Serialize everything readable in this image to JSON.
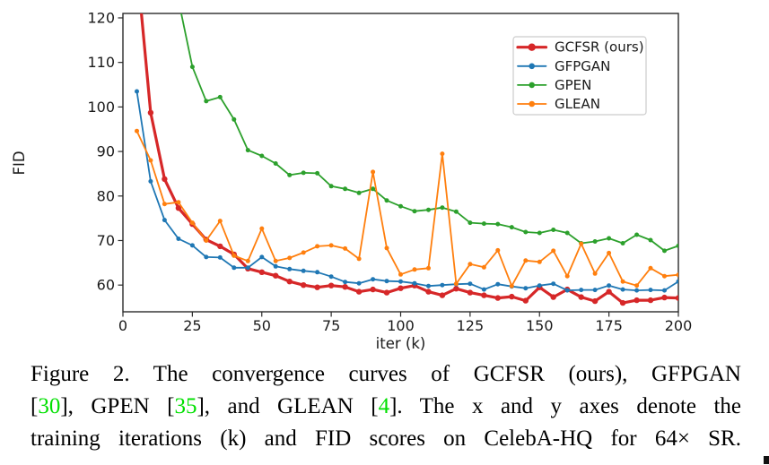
{
  "figure": {
    "caption": {
      "text_color": "#000000",
      "citation_color": "#00e000",
      "lines": [
        [
          {
            "text": "Figure 2.  The convergence curves of GCFSR (ours), GFPGAN"
          }
        ],
        [
          {
            "text": "["
          },
          {
            "text": "30",
            "green": true
          },
          {
            "text": "], GPEN ["
          },
          {
            "text": "35",
            "green": true
          },
          {
            "text": "], and GLEAN ["
          },
          {
            "text": "4",
            "green": true
          },
          {
            "text": "].  The x and y axes denote the"
          }
        ],
        [
          {
            "text": "training iterations (k) and FID scores on CelebA-HQ for 64× SR."
          }
        ]
      ]
    }
  },
  "chart_data": {
    "type": "line",
    "title": "",
    "xlabel": "iter (k)",
    "ylabel": "FID",
    "xlim": [
      0,
      200
    ],
    "ylim": [
      54,
      121
    ],
    "xticks": [
      0,
      25,
      50,
      75,
      100,
      125,
      150,
      175,
      200
    ],
    "yticks": [
      60,
      70,
      80,
      90,
      100,
      110,
      120
    ],
    "grid": false,
    "legend_position": "upper right",
    "frame_color": "#2a2a2a",
    "text_color": "#1a1a1a",
    "legend_edge_color": "#cccccc",
    "series": [
      {
        "id": "gcfsr-ours",
        "name": "GCFSR (ours)",
        "color": "#d62728",
        "line_width": 3.2,
        "marker_radius": 3.2,
        "legend_marker_radius": 4.2,
        "x": [
          5,
          10,
          15,
          20,
          25,
          30,
          35,
          40,
          45,
          50,
          55,
          60,
          65,
          70,
          75,
          80,
          85,
          90,
          95,
          100,
          105,
          110,
          115,
          120,
          125,
          130,
          135,
          140,
          145,
          150,
          155,
          160,
          165,
          170,
          175,
          180,
          185,
          190,
          195,
          200
        ],
        "values": [
          132,
          98.7,
          83.8,
          77.3,
          73.7,
          70.2,
          68.7,
          66.9,
          63.7,
          62.9,
          62.1,
          60.8,
          60.0,
          59.5,
          59.9,
          59.6,
          58.5,
          59.0,
          58.3,
          59.3,
          59.9,
          58.5,
          57.7,
          59.2,
          58.3,
          57.7,
          57.1,
          57.4,
          56.5,
          59.5,
          57.3,
          59.0,
          57.3,
          56.4,
          58.5,
          56.0,
          56.6,
          56.6,
          57.2,
          57.1
        ]
      },
      {
        "id": "gfpgan",
        "name": "GFPGAN",
        "color": "#1f77b4",
        "line_width": 1.8,
        "marker_radius": 2.5,
        "legend_marker_radius": 3.3,
        "x": [
          5,
          10,
          15,
          20,
          25,
          30,
          35,
          40,
          45,
          50,
          55,
          60,
          65,
          70,
          75,
          80,
          85,
          90,
          95,
          100,
          105,
          110,
          115,
          120,
          125,
          130,
          135,
          140,
          145,
          150,
          155,
          160,
          165,
          170,
          175,
          180,
          185,
          190,
          195,
          200
        ],
        "values": [
          103.5,
          83.3,
          74.6,
          70.4,
          68.9,
          66.3,
          66.2,
          63.9,
          63.9,
          66.3,
          64.2,
          63.6,
          63.2,
          62.9,
          61.9,
          60.7,
          60.4,
          61.3,
          60.9,
          60.8,
          60.4,
          59.8,
          60.0,
          60.2,
          60.3,
          59.0,
          60.2,
          59.7,
          59.3,
          59.9,
          60.3,
          58.8,
          58.9,
          58.9,
          59.9,
          59.0,
          58.8,
          58.9,
          58.8,
          60.8
        ]
      },
      {
        "id": "gpen",
        "name": "GPEN",
        "color": "#2ca02c",
        "line_width": 1.8,
        "marker_radius": 2.5,
        "legend_marker_radius": 3.3,
        "x": [
          20,
          25,
          30,
          35,
          40,
          45,
          50,
          55,
          60,
          65,
          70,
          75,
          80,
          85,
          90,
          95,
          100,
          105,
          110,
          115,
          120,
          125,
          130,
          135,
          140,
          145,
          150,
          155,
          160,
          165,
          170,
          175,
          180,
          185,
          190,
          195,
          200
        ],
        "values": [
          124,
          109,
          101.3,
          102.2,
          97.2,
          90.3,
          89.0,
          87.3,
          84.7,
          85.2,
          85.1,
          82.2,
          81.6,
          80.7,
          81.6,
          79.0,
          77.7,
          76.6,
          76.9,
          77.4,
          76.5,
          74.0,
          73.8,
          73.7,
          73.0,
          71.9,
          71.7,
          72.4,
          71.7,
          69.4,
          69.8,
          70.5,
          69.4,
          71.3,
          70.1,
          67.7,
          68.8
        ]
      },
      {
        "id": "glean",
        "name": "GLEAN",
        "color": "#ff7f0e",
        "line_width": 1.8,
        "marker_radius": 2.5,
        "legend_marker_radius": 3.3,
        "x": [
          5,
          10,
          15,
          20,
          25,
          30,
          35,
          40,
          45,
          50,
          55,
          60,
          65,
          70,
          75,
          80,
          85,
          90,
          95,
          100,
          105,
          110,
          115,
          120,
          125,
          130,
          135,
          140,
          145,
          150,
          155,
          160,
          165,
          170,
          175,
          180,
          185,
          190,
          195,
          200
        ],
        "values": [
          94.6,
          88.0,
          78.2,
          78.6,
          74.0,
          70.0,
          74.4,
          66.6,
          65.4,
          72.7,
          65.4,
          66.1,
          67.3,
          68.7,
          68.9,
          68.2,
          65.9,
          85.4,
          68.3,
          62.4,
          63.5,
          63.8,
          89.5,
          60.3,
          64.7,
          64.0,
          67.8,
          59.8,
          65.5,
          65.2,
          67.7,
          62.0,
          69.3,
          62.6,
          67.2,
          60.8,
          59.9,
          63.8,
          62.0,
          62.3
        ]
      }
    ]
  }
}
